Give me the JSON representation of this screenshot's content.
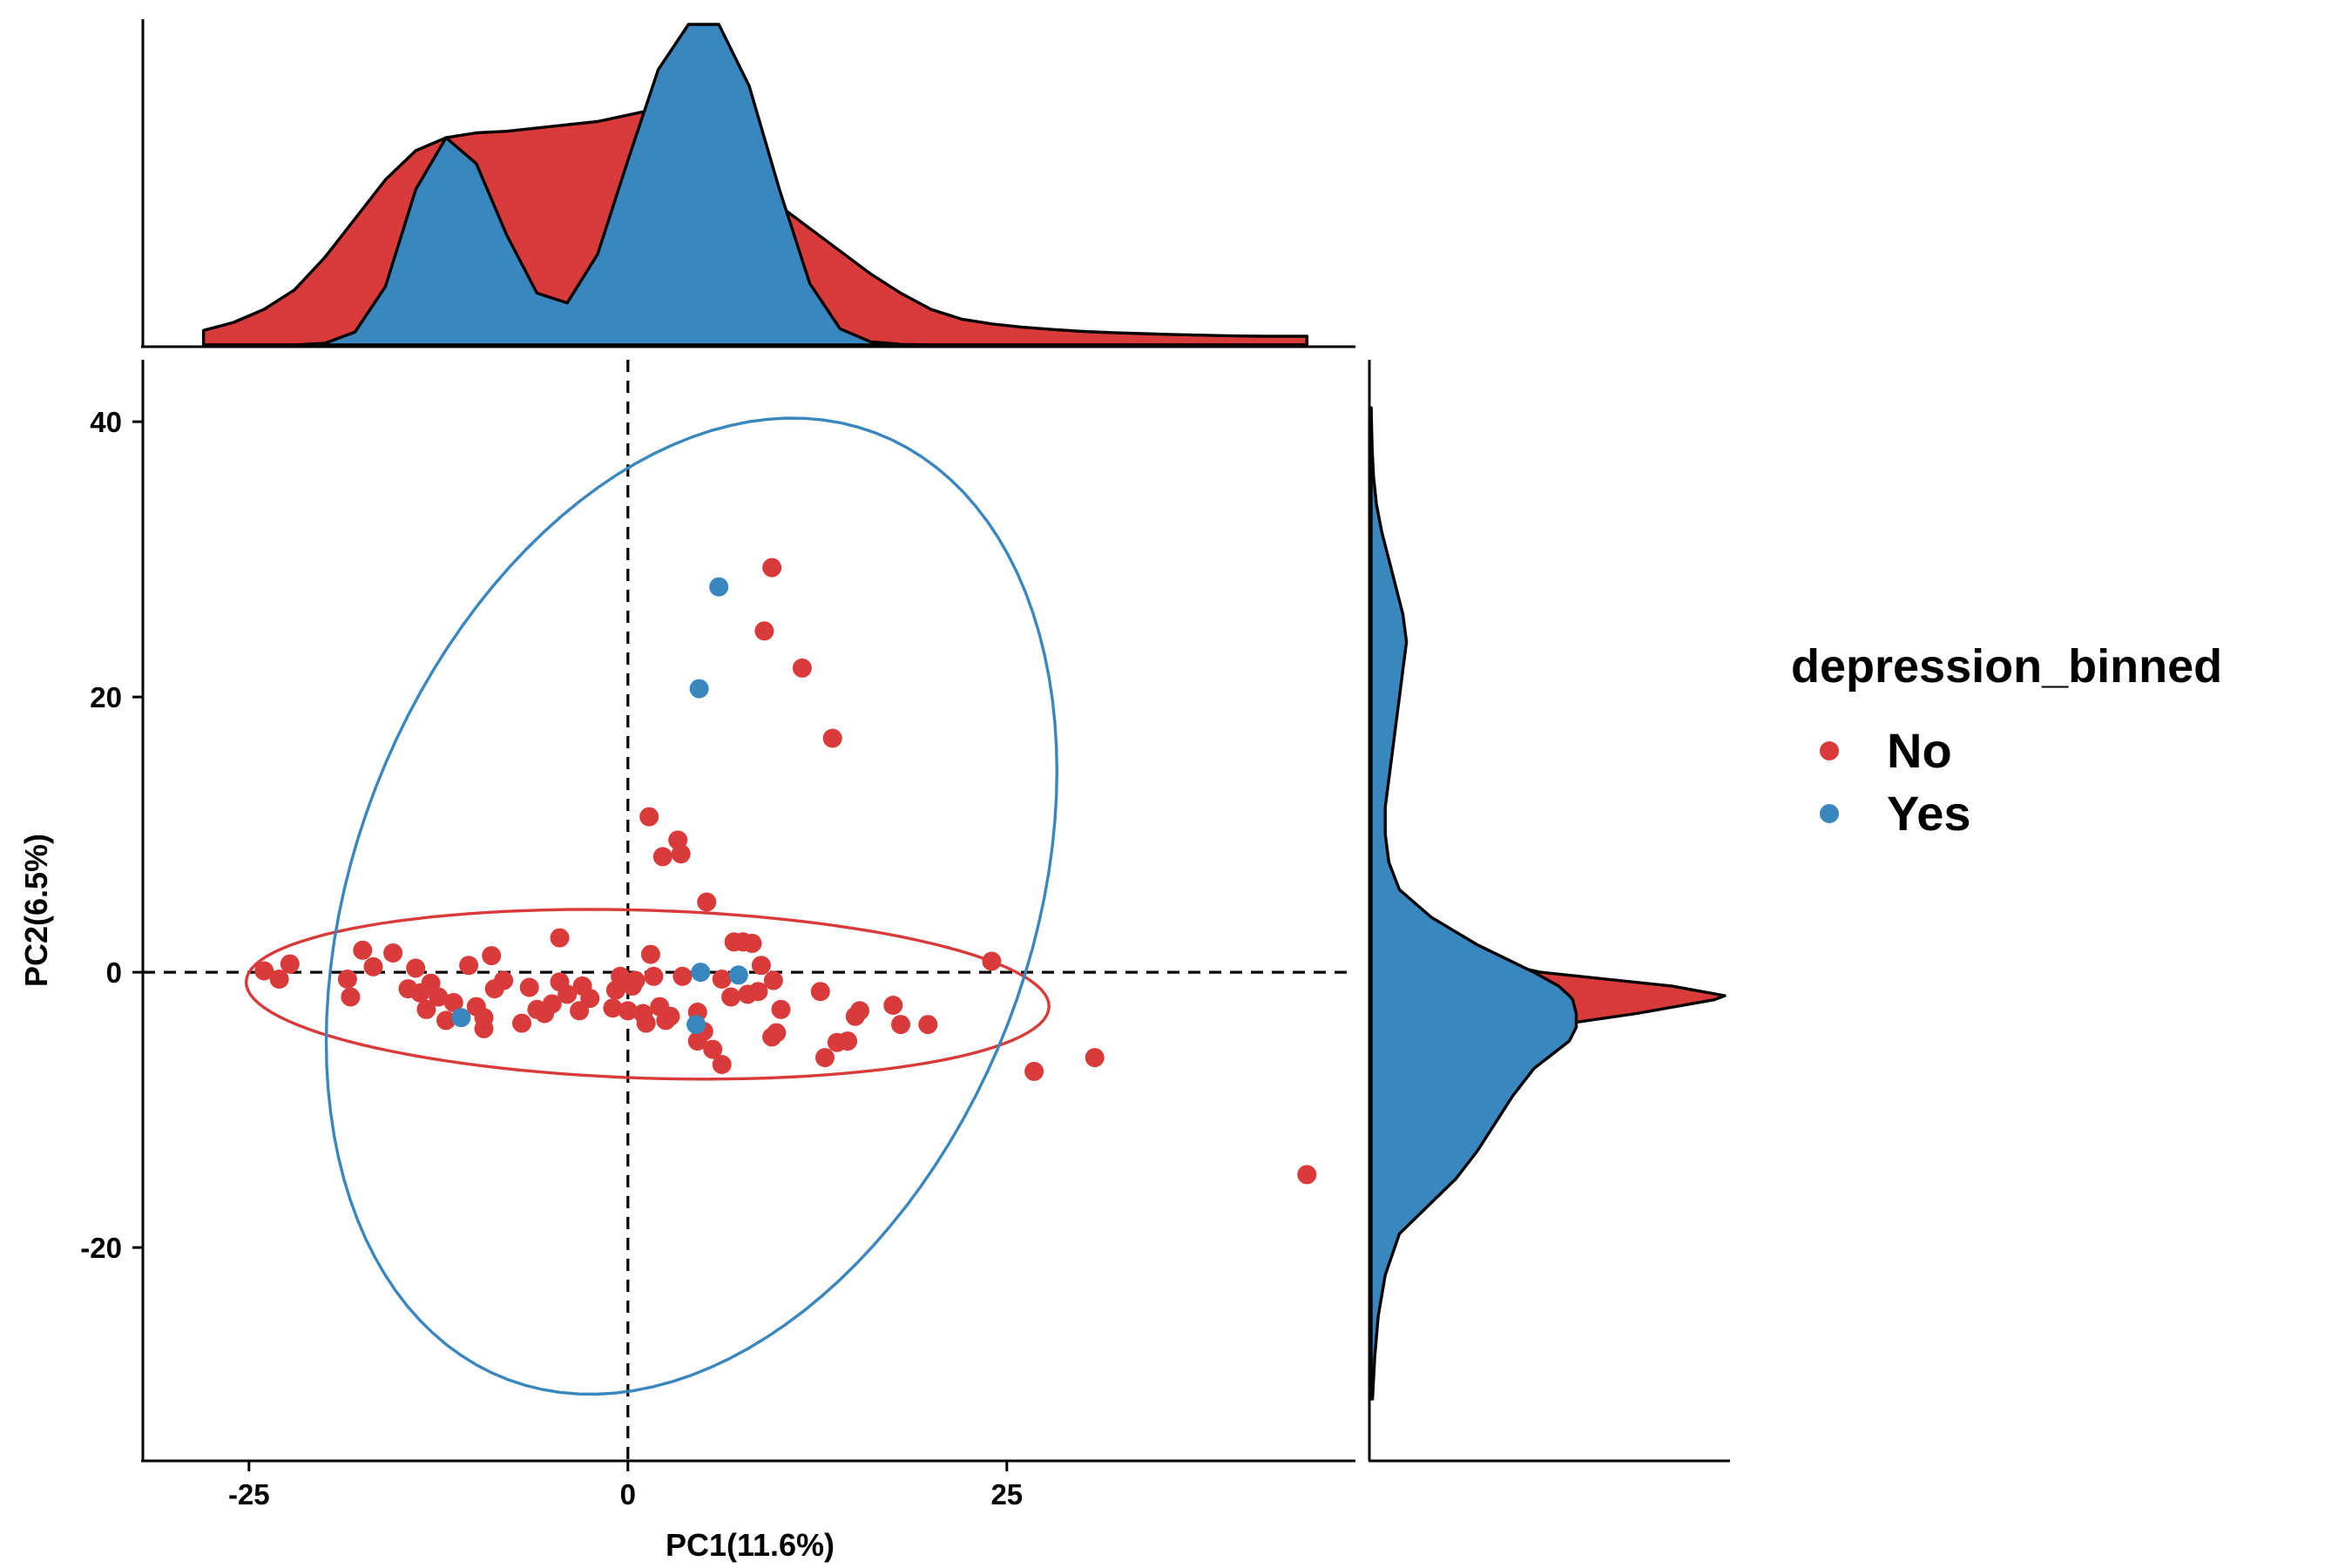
{
  "chart_data": {
    "type": "scatter",
    "x_label": "PC1(11.6%)",
    "y_label": "PC2(6.5%)",
    "x_lim": [
      -32,
      48
    ],
    "y_lim": [
      -35.5,
      44.5
    ],
    "x_ticks": [
      -25,
      0,
      25
    ],
    "y_ticks": [
      -20,
      0,
      20,
      40
    ],
    "reference_lines": {
      "x": 0,
      "y": 0,
      "style": "dashed"
    },
    "grid": false,
    "legend": {
      "title": "depression_binned",
      "placement": "right"
    },
    "series": [
      {
        "name": "No",
        "color": "#D93A3A",
        "points": [
          [
            -24,
            0.1
          ],
          [
            -23,
            -0.5
          ],
          [
            -22.3,
            0.6
          ],
          [
            -18.5,
            -0.5
          ],
          [
            -18.3,
            -1.8
          ],
          [
            -17.5,
            1.6
          ],
          [
            -16.8,
            0.4
          ],
          [
            -15.5,
            1.4
          ],
          [
            -14.5,
            -1.2
          ],
          [
            -14,
            0.3
          ],
          [
            -13.7,
            -1.5
          ],
          [
            -13.3,
            -2.7
          ],
          [
            -13,
            -0.8
          ],
          [
            -12.5,
            -1.8
          ],
          [
            -12,
            -3.5
          ],
          [
            -11.5,
            -2.2
          ],
          [
            -10.5,
            0.5
          ],
          [
            -10,
            -2.5
          ],
          [
            -9.5,
            -3.3
          ],
          [
            -9.5,
            -4.1
          ],
          [
            -9,
            1.2
          ],
          [
            -8.8,
            -1.2
          ],
          [
            -8.2,
            -0.6
          ],
          [
            -7,
            -3.7
          ],
          [
            -6.5,
            -1.1
          ],
          [
            -6,
            -2.7
          ],
          [
            -5.5,
            -3
          ],
          [
            -5,
            -2.3
          ],
          [
            -4.5,
            2.5
          ],
          [
            -4.5,
            -0.7
          ],
          [
            -4,
            -1.6
          ],
          [
            -3.2,
            -2.8
          ],
          [
            -3,
            -1
          ],
          [
            -2.5,
            -1.9
          ],
          [
            -1,
            -2.6
          ],
          [
            -0.8,
            -1.3
          ],
          [
            -0.5,
            -0.3
          ],
          [
            0,
            -2.8
          ],
          [
            0.3,
            -1
          ],
          [
            0.5,
            -0.6
          ],
          [
            1,
            -3
          ],
          [
            1.2,
            -3.7
          ],
          [
            1.4,
            11.3
          ],
          [
            1.5,
            1.3
          ],
          [
            1.7,
            -0.3
          ],
          [
            2.1,
            -2.5
          ],
          [
            2.3,
            8.4
          ],
          [
            2.5,
            -3.5
          ],
          [
            2.8,
            -3.2
          ],
          [
            3.3,
            9.6
          ],
          [
            3.5,
            8.6
          ],
          [
            3.6,
            -0.3
          ],
          [
            4.6,
            -2.9
          ],
          [
            4.6,
            -5
          ],
          [
            5,
            -4.3
          ],
          [
            5.2,
            5.1
          ],
          [
            5.6,
            -5.6
          ],
          [
            6.2,
            -0.5
          ],
          [
            6.2,
            -6.7
          ],
          [
            6.8,
            -1.8
          ],
          [
            7,
            2.2
          ],
          [
            7.6,
            2.2
          ],
          [
            7.9,
            -1.6
          ],
          [
            8.2,
            2.1
          ],
          [
            8.6,
            -1.4
          ],
          [
            8.8,
            0.5
          ],
          [
            9,
            24.8
          ],
          [
            9.5,
            29.4
          ],
          [
            9.5,
            -4.7
          ],
          [
            9.6,
            -0.6
          ],
          [
            9.8,
            -4.4
          ],
          [
            10.1,
            -2.7
          ],
          [
            11.5,
            22.1
          ],
          [
            12.7,
            -1.4
          ],
          [
            13,
            -6.2
          ],
          [
            13.5,
            17
          ],
          [
            13.8,
            -5.1
          ],
          [
            14.5,
            -5
          ],
          [
            15,
            -3.2
          ],
          [
            15.3,
            -2.8
          ],
          [
            17.5,
            -2.4
          ],
          [
            18,
            -3.8
          ],
          [
            19.8,
            -3.8
          ],
          [
            24,
            0.8
          ],
          [
            26.8,
            -7.2
          ],
          [
            30.8,
            -6.2
          ],
          [
            44.8,
            -14.7
          ]
        ]
      },
      {
        "name": "Yes",
        "color": "#3A87BF",
        "points": [
          [
            6,
            28
          ],
          [
            4.7,
            20.6
          ],
          [
            4.8,
            0
          ],
          [
            7.3,
            -0.2
          ],
          [
            -11,
            -3.3
          ],
          [
            4.5,
            -3.8
          ]
        ]
      }
    ],
    "ellipses": [
      {
        "series": "No",
        "center": [
          1.3,
          -1.6
        ],
        "radius_major": 26.5,
        "radius_minor": 6.1,
        "angle_deg": -2.0
      },
      {
        "series": "Yes",
        "center": [
          4.2,
          4.8
        ],
        "radius_major": 36.5,
        "radius_minor": 22.5,
        "angle_deg": 72.5
      }
    ],
    "marginal_x_density": {
      "x": [
        -28,
        -26,
        -24,
        -22,
        -20,
        -18,
        -16,
        -14,
        -12,
        -10,
        -8,
        -6,
        -4,
        -2,
        0,
        2,
        4,
        6,
        8,
        10,
        12,
        14,
        16,
        18,
        20,
        22,
        24,
        26,
        28,
        30,
        32,
        34,
        36,
        38,
        40,
        42,
        44.8
      ],
      "No": [
        0.045,
        0.07,
        0.11,
        0.17,
        0.27,
        0.39,
        0.51,
        0.6,
        0.64,
        0.655,
        0.66,
        0.67,
        0.68,
        0.69,
        0.71,
        0.73,
        0.71,
        0.64,
        0.53,
        0.43,
        0.36,
        0.29,
        0.22,
        0.16,
        0.11,
        0.08,
        0.065,
        0.055,
        0.048,
        0.042,
        0.038,
        0.035,
        0.032,
        0.03,
        0.028,
        0.027,
        0.027
      ],
      "Yes": [
        0,
        0,
        0,
        0,
        0.005,
        0.04,
        0.18,
        0.48,
        0.64,
        0.56,
        0.34,
        0.16,
        0.13,
        0.28,
        0.57,
        0.85,
        0.99,
        0.99,
        0.8,
        0.48,
        0.19,
        0.05,
        0.01,
        0.002,
        0,
        0,
        0,
        0,
        0,
        0,
        0,
        0,
        0,
        0,
        0,
        0,
        0
      ]
    },
    "marginal_y_density": {
      "y": [
        -31,
        -28,
        -25,
        -22,
        -19,
        -17,
        -15,
        -13,
        -11,
        -9,
        -7,
        -5,
        -4,
        -3,
        -2,
        -1.7,
        -1,
        0,
        1,
        2,
        4,
        6,
        8,
        10,
        12,
        14,
        16,
        18,
        20,
        22,
        24,
        26,
        28,
        30,
        32,
        34,
        36,
        38,
        41
      ],
      "No": [
        0,
        0,
        0,
        0.001,
        0.005,
        0.01,
        0.02,
        0.045,
        0.09,
        0.15,
        0.23,
        0.33,
        0.48,
        0.75,
        0.97,
        1.0,
        0.85,
        0.48,
        0.3,
        0.2,
        0.11,
        0.07,
        0.05,
        0.04,
        0.035,
        0.03,
        0.028,
        0.028,
        0.029,
        0.03,
        0.035,
        0.03,
        0.025,
        0.02,
        0.012,
        0.007,
        0.004,
        0.001,
        0
      ],
      "Yes": [
        0.004,
        0.01,
        0.02,
        0.04,
        0.08,
        0.16,
        0.24,
        0.3,
        0.35,
        0.4,
        0.46,
        0.56,
        0.58,
        0.58,
        0.57,
        0.56,
        0.53,
        0.46,
        0.38,
        0.3,
        0.17,
        0.08,
        0.05,
        0.04,
        0.04,
        0.05,
        0.06,
        0.07,
        0.08,
        0.09,
        0.1,
        0.09,
        0.07,
        0.05,
        0.03,
        0.015,
        0.007,
        0.003,
        0
      ]
    }
  }
}
